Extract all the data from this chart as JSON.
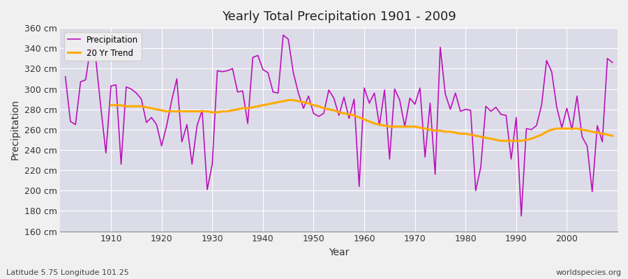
{
  "title": "Yearly Total Precipitation 1901 - 2009",
  "xlabel": "Year",
  "ylabel": "Precipitation",
  "subtitle_left": "Latitude 5.75 Longitude 101.25",
  "subtitle_right": "worldspecies.org",
  "ylim": [
    160,
    360
  ],
  "ytick_step": 20,
  "fig_bg_color": "#f0f0f0",
  "plot_bg_color": "#dcdce8",
  "grid_color": "#ffffff",
  "precip_color": "#bb11bb",
  "trend_color": "#ffaa00",
  "precip_label": "Precipitation",
  "trend_label": "20 Yr Trend",
  "years": [
    1901,
    1902,
    1903,
    1904,
    1905,
    1906,
    1907,
    1908,
    1909,
    1910,
    1911,
    1912,
    1913,
    1914,
    1915,
    1916,
    1917,
    1918,
    1919,
    1920,
    1921,
    1922,
    1923,
    1924,
    1925,
    1926,
    1927,
    1928,
    1929,
    1930,
    1931,
    1932,
    1933,
    1934,
    1935,
    1936,
    1937,
    1938,
    1939,
    1940,
    1941,
    1942,
    1943,
    1944,
    1945,
    1946,
    1947,
    1948,
    1949,
    1950,
    1951,
    1952,
    1953,
    1954,
    1955,
    1956,
    1957,
    1958,
    1959,
    1960,
    1961,
    1962,
    1963,
    1964,
    1965,
    1966,
    1967,
    1968,
    1969,
    1970,
    1971,
    1972,
    1973,
    1974,
    1975,
    1976,
    1977,
    1978,
    1979,
    1980,
    1981,
    1982,
    1983,
    1984,
    1985,
    1986,
    1987,
    1988,
    1989,
    1990,
    1991,
    1992,
    1993,
    1994,
    1995,
    1996,
    1997,
    1998,
    1999,
    2000,
    2001,
    2002,
    2003,
    2004,
    2005,
    2006,
    2007,
    2008,
    2009
  ],
  "precip": [
    312,
    268,
    265,
    307,
    309,
    342,
    330,
    282,
    237,
    303,
    304,
    226,
    302,
    300,
    296,
    290,
    267,
    272,
    265,
    244,
    264,
    289,
    310,
    248,
    265,
    226,
    264,
    279,
    201,
    226,
    318,
    317,
    318,
    320,
    297,
    298,
    266,
    331,
    333,
    319,
    316,
    297,
    296,
    353,
    349,
    316,
    296,
    281,
    293,
    276,
    273,
    276,
    299,
    291,
    274,
    292,
    271,
    290,
    204,
    301,
    286,
    296,
    264,
    299,
    231,
    300,
    289,
    263,
    291,
    285,
    301,
    233,
    286,
    216,
    341,
    295,
    280,
    296,
    278,
    280,
    279,
    200,
    223,
    283,
    278,
    282,
    275,
    274,
    231,
    272,
    175,
    261,
    260,
    264,
    284,
    328,
    317,
    282,
    262,
    281,
    260,
    293,
    253,
    244,
    199,
    264,
    248,
    330,
    326
  ],
  "trend": [
    null,
    null,
    null,
    null,
    null,
    null,
    null,
    null,
    null,
    284,
    284,
    284,
    283,
    283,
    283,
    283,
    282,
    281,
    280,
    279,
    278,
    278,
    278,
    278,
    278,
    278,
    278,
    278,
    278,
    277,
    277,
    278,
    278,
    279,
    280,
    281,
    281,
    282,
    283,
    284,
    285,
    286,
    287,
    288,
    289,
    289,
    288,
    287,
    286,
    284,
    283,
    281,
    280,
    279,
    277,
    276,
    275,
    274,
    272,
    270,
    268,
    266,
    265,
    264,
    263,
    263,
    263,
    263,
    263,
    263,
    262,
    261,
    260,
    259,
    259,
    258,
    258,
    257,
    256,
    256,
    255,
    254,
    253,
    252,
    251,
    250,
    249,
    249,
    249,
    249,
    249,
    250,
    251,
    253,
    255,
    258,
    260,
    261,
    261,
    261,
    261,
    261,
    260,
    259,
    258,
    257,
    256,
    255,
    254
  ]
}
